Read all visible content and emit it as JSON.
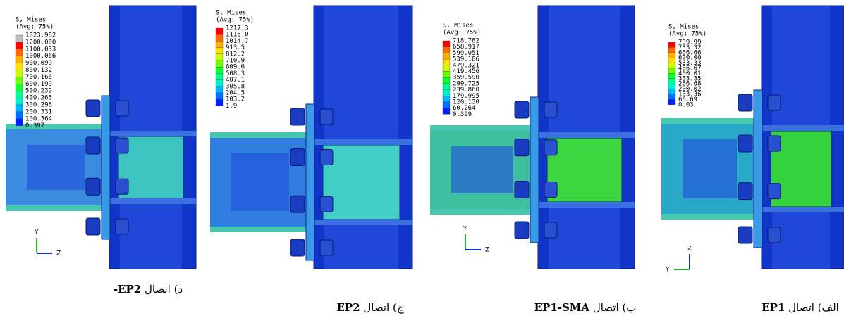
{
  "panels": [
    {
      "legend": {
        "title": "S, Mises",
        "subtitle": "(Avg: 75%)",
        "values": [
          "1823.982",
          "1200.000",
          "1100.033",
          "1000.066",
          "900.099",
          "800.132",
          "700.166",
          "600.199",
          "500.232",
          "400.265",
          "300.298",
          "200.331",
          "100.364",
          "0.397"
        ]
      },
      "triad": {
        "vertical": "Y",
        "horizontal": "Z"
      },
      "caption": {
        "prefix": "د) اتصال",
        "bold": "-EP2"
      }
    },
    {
      "legend": {
        "title": "S, Mises",
        "subtitle": "(Avg: 75%)",
        "values": [
          "1217.3",
          "1116.0",
          "1014.7",
          "913.5",
          "812.2",
          "710.9",
          "609.6",
          "508.3",
          "407.1",
          "305.8",
          "204.5",
          "103.2",
          "1.9"
        ]
      },
      "caption": {
        "prefix": "ج) اتصال",
        "bold": "EP2"
      }
    },
    {
      "legend": {
        "title": "S, Mises",
        "subtitle": "(Avg: 75%)",
        "values": [
          "718.782",
          "658.917",
          "599.051",
          "539.186",
          "479.321",
          "419.456",
          "359.590",
          "299.725",
          "239.860",
          "179.995",
          "120.130",
          "60.264",
          "0.399"
        ]
      },
      "triad": {
        "vertical": "Y",
        "horizontal": "Z"
      },
      "caption": {
        "prefix": "ب) اتصال",
        "bold": "EP1-SMA"
      }
    },
    {
      "legend": {
        "title": "S, Mises",
        "subtitle": "(Avg: 75%)",
        "values": [
          "799.99",
          "733.32",
          "666.66",
          "600.00",
          "533.33",
          "466.67",
          "400.01",
          "333.35",
          "266.68",
          "200.02",
          "133.36",
          "66.69",
          "0.03"
        ]
      },
      "triad": {
        "vertical": "Z",
        "horizontal": "Y"
      },
      "caption": {
        "prefix": "الف) اتصال",
        "bold": "EP1"
      }
    }
  ]
}
